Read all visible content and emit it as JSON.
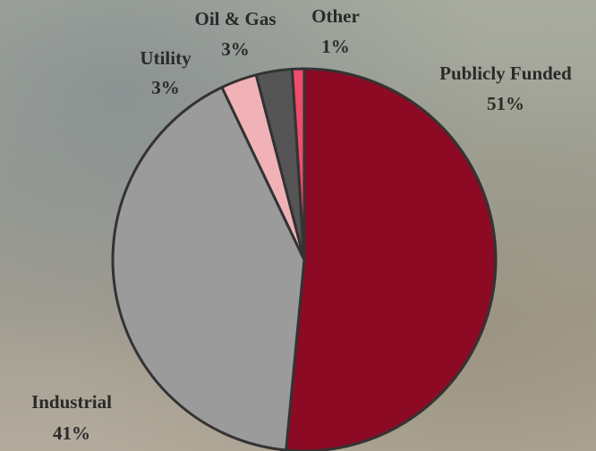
{
  "chart_data": {
    "type": "pie",
    "categories": [
      "Publicly Funded",
      "Industrial",
      "Utility",
      "Oil & Gas",
      "Other"
    ],
    "values": [
      51,
      41,
      3,
      3,
      1
    ],
    "value_labels": [
      "51%",
      "41%",
      "3%",
      "3%",
      "1%"
    ],
    "colors": [
      "#8c0a24",
      "#9b9b9b",
      "#f0b2b7",
      "#555555",
      "#ee4d6c"
    ]
  }
}
